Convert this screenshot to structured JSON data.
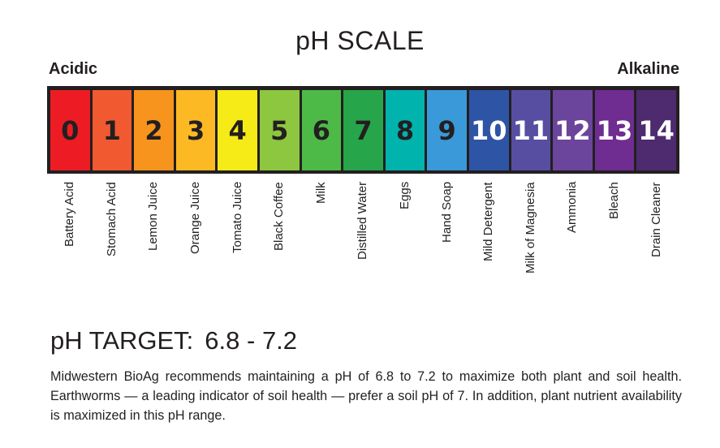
{
  "title": "pH SCALE",
  "acidic_label": "Acidic",
  "alkaline_label": "Alkaline",
  "scale": [
    {
      "value": "0",
      "example": "Battery Acid",
      "color": "#ed1c24",
      "text": "dark"
    },
    {
      "value": "1",
      "example": "Stomach Acid",
      "color": "#f15a30",
      "text": "dark"
    },
    {
      "value": "2",
      "example": "Lemon Juice",
      "color": "#f7941d",
      "text": "dark"
    },
    {
      "value": "3",
      "example": "Orange Juice",
      "color": "#fdb924",
      "text": "dark"
    },
    {
      "value": "4",
      "example": "Tomato Juice",
      "color": "#f6eb16",
      "text": "dark"
    },
    {
      "value": "5",
      "example": "Black Coffee",
      "color": "#8dc63f",
      "text": "dark"
    },
    {
      "value": "6",
      "example": "Milk",
      "color": "#4dba48",
      "text": "dark"
    },
    {
      "value": "7",
      "example": "Distilled Water",
      "color": "#27a54a",
      "text": "dark"
    },
    {
      "value": "8",
      "example": "Eggs",
      "color": "#00b3ad",
      "text": "dark"
    },
    {
      "value": "9",
      "example": "Hand Soap",
      "color": "#3a99d8",
      "text": "dark"
    },
    {
      "value": "10",
      "example": "Mild Detergent",
      "color": "#2e54a5",
      "text": "light"
    },
    {
      "value": "11",
      "example": "Milk of Magnesia",
      "color": "#574ea2",
      "text": "light"
    },
    {
      "value": "12",
      "example": "Ammonia",
      "color": "#6b459c",
      "text": "light"
    },
    {
      "value": "13",
      "example": "Bleach",
      "color": "#6f2c91",
      "text": "light"
    },
    {
      "value": "14",
      "example": "Drain Cleaner",
      "color": "#4e2a6e",
      "text": "light"
    }
  ],
  "target": {
    "label": "pH TARGET:",
    "value": "6.8 - 7.2"
  },
  "description": "Midwestern BioAg recommends maintaining a pH of 6.8 to 7.2 to maximize both plant and soil health. Earthworms — a leading indicator of soil health — prefer a soil pH of 7. In addition, plant nutrient availability is maximized in this pH range."
}
